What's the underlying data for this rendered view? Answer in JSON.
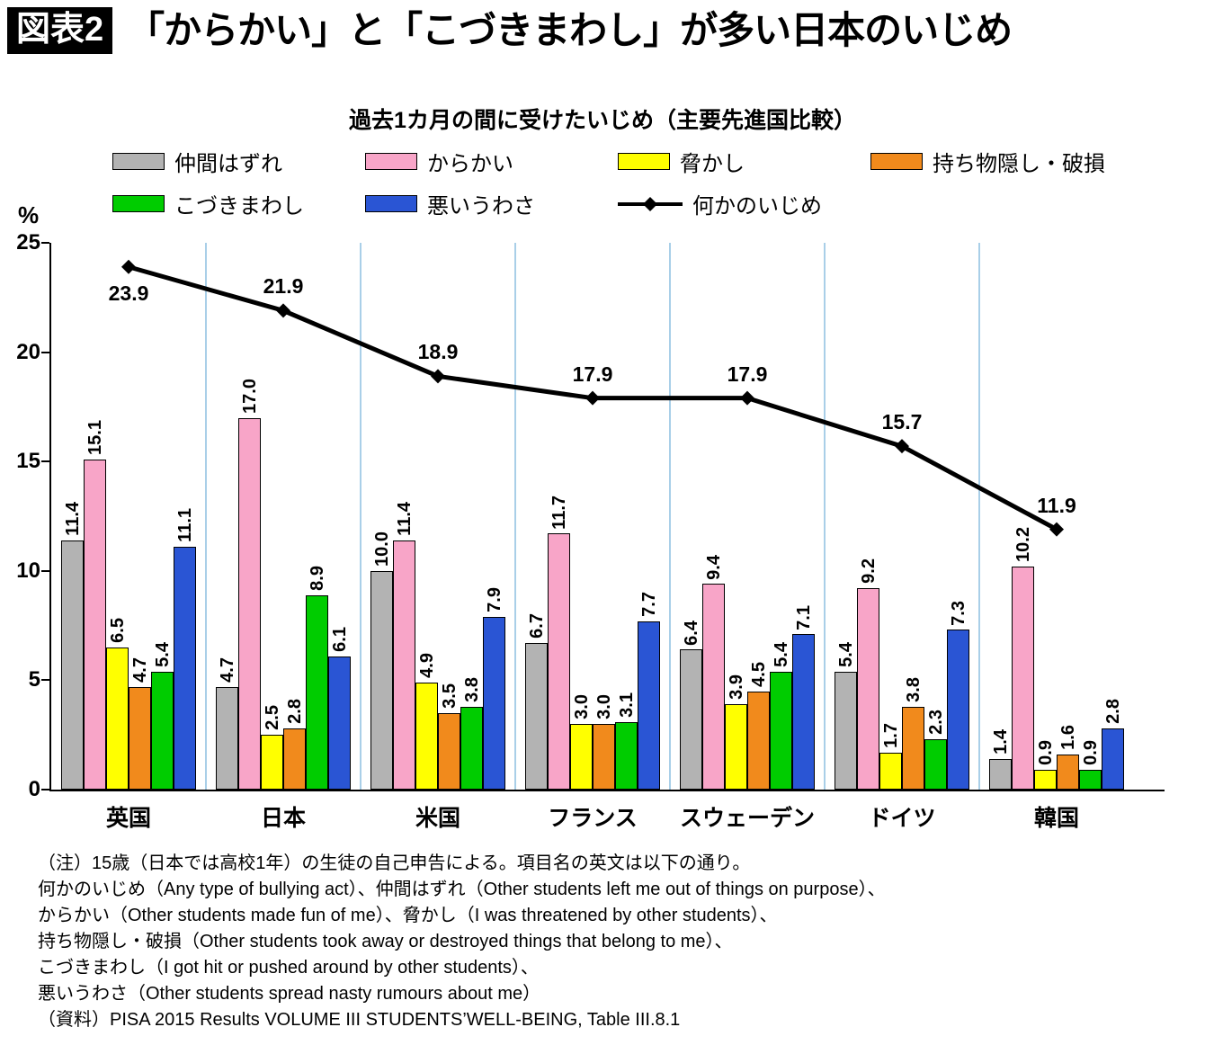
{
  "page": {
    "figure_tag": "図表2",
    "title": "「からかい」と「こづきまわし」が多い日本のいじめ"
  },
  "chart_data": {
    "type": "bar",
    "title": "過去1カ月の間に受けたいじめ（主要先進国比較）",
    "xlabel": "",
    "ylabel": "%",
    "ylim": [
      0,
      25
    ],
    "yticks": [
      0,
      5,
      10,
      15,
      20,
      25
    ],
    "grid": false,
    "legend_position": "top",
    "separator_color": "#a9cfe8",
    "categories": [
      "英国",
      "日本",
      "米国",
      "フランス",
      "スウェーデン",
      "ドイツ",
      "韓国"
    ],
    "series": [
      {
        "name": "仲間はずれ",
        "color": "#b3b3b3",
        "values": [
          11.4,
          4.7,
          10.0,
          6.7,
          6.4,
          5.4,
          1.4
        ]
      },
      {
        "name": "からかい",
        "color": "#f8a5c8",
        "values": [
          15.1,
          17.0,
          11.4,
          11.7,
          9.4,
          9.2,
          10.2
        ]
      },
      {
        "name": "脅かし",
        "color": "#ffff00",
        "values": [
          6.5,
          2.5,
          4.9,
          3.0,
          3.9,
          1.7,
          0.9
        ]
      },
      {
        "name": "持ち物隠し・破損",
        "color": "#f18a1c",
        "values": [
          4.7,
          2.8,
          3.5,
          3.0,
          4.5,
          3.8,
          1.6
        ]
      },
      {
        "name": "こづきまわし",
        "color": "#00cc00",
        "values": [
          5.4,
          8.9,
          3.8,
          3.1,
          5.4,
          2.3,
          0.9
        ]
      },
      {
        "name": "悪いうわさ",
        "color": "#2a55d4",
        "values": [
          11.1,
          6.1,
          7.9,
          7.7,
          7.1,
          7.3,
          2.8
        ]
      }
    ],
    "line_series": {
      "name": "何かのいじめ",
      "color": "#000000",
      "values": [
        23.9,
        21.9,
        18.9,
        17.9,
        17.9,
        15.7,
        11.9
      ]
    }
  },
  "notes": {
    "lines": [
      "（注）15歳（日本では高校1年）の生徒の自己申告による。項目名の英文は以下の通り。",
      "何かのいじめ（Any type of bullying act）、仲間はずれ（Other students left me out of things on purpose）、",
      "からかい（Other students made fun of me）、脅かし（I was threatened by other students）、",
      "持ち物隠し・破損（Other students took away or destroyed things that belong to me）、",
      "こづきまわし（I got hit or pushed around by other students）、",
      "悪いうわさ（Other students spread nasty rumours about me）",
      "（資料）PISA 2015 Results VOLUME III STUDENTS’WELL-BEING, Table III.8.1"
    ]
  }
}
